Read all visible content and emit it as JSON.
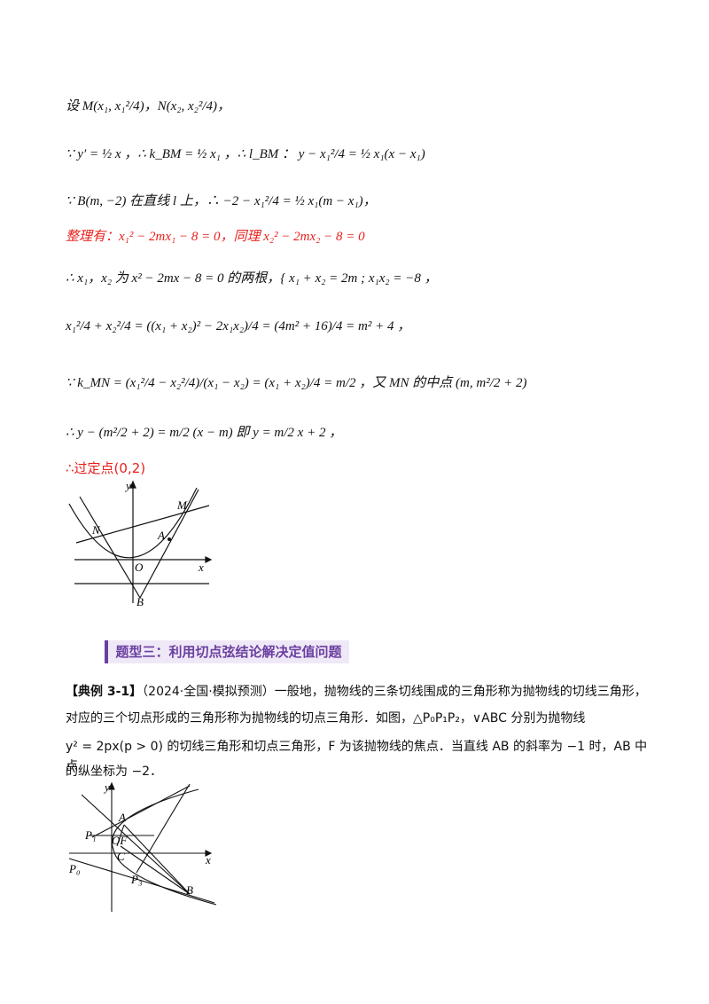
{
  "lines": {
    "l1": "设 M(x₁, x₁²/4)，N(x₂, x₂²/4)，",
    "l2": "∵ y′ = ½ x ，∴ k_BM = ½ x₁ ，∴ l_BM ： y − x₁²/4 = ½ x₁(x − x₁)",
    "l3": "∵ B(m, −2) 在直线 l 上，∴ −2 − x₁²/4 = ½ x₁(m − x₁)，",
    "l4": "整理有：x₁² − 2mx₁ − 8 = 0，同理 x₂² − 2mx₂ − 8 = 0",
    "l5": "∴ x₁，x₂ 为 x² − 2mx − 8 = 0 的两根，{ x₁ + x₂ = 2m ; x₁x₂ = −8 ，",
    "l6": "x₁²/4 + x₂²/4 = ((x₁ + x₂)² − 2x₁x₂)/4 = (4m² + 16)/4 = m² + 4 ，",
    "l7": "∵ k_MN = (x₁²/4 − x₂²/4)/(x₁ − x₂) = (x₁ + x₂)/4 = m/2 ，又 MN 的中点 (m, m²/2 + 2)",
    "l8": "∴ y − (m²/2 + 2) = m/2 (x − m) 即 y = m/2 x + 2 ，",
    "l9": "∴过定点(0,2)"
  },
  "figure1": {
    "labels": {
      "y": "y",
      "x": "x",
      "M": "M",
      "N": "N",
      "A": "A",
      "O": "O",
      "B": "B"
    }
  },
  "section": {
    "title": "题型三：利用切点弦结论解决定值问题"
  },
  "example": {
    "tag": "【典例 3-1】",
    "source": "（2024·全国·模拟预测）",
    "text1": "一般地，抛物线的三条切线围成的三角形称为抛物线的切线三角形，",
    "text2": "对应的三个切点形成的三角形称为抛物线的切点三角形．如图，△P₀P₁P₂，∨ABC 分别为抛物线",
    "text3": "y² = 2px(p > 0) 的切线三角形和切点三角形，F 为该抛物线的焦点．当直线 AB 的斜率为 −1 时，AB 中点",
    "text4": "的纵坐标为 −2．"
  },
  "figure2": {
    "labels": {
      "y": "y",
      "x": "x",
      "A": "A",
      "P1": "P₁",
      "OF": "OF",
      "C": "C",
      "P0": "P₀",
      "P3": "P₃",
      "B": "B"
    }
  }
}
